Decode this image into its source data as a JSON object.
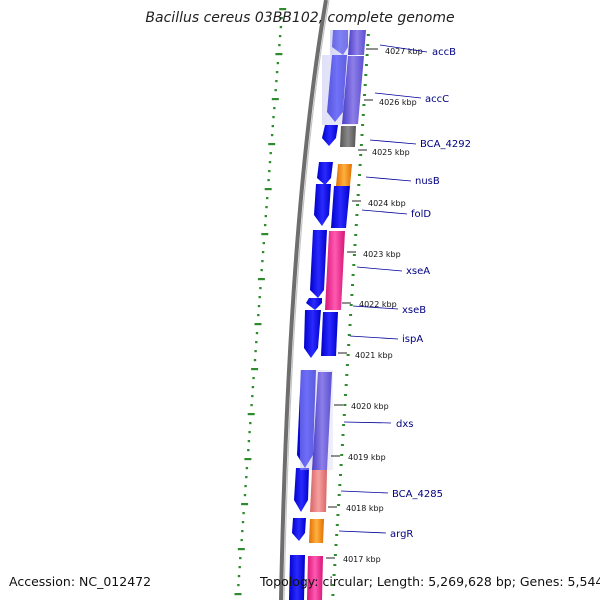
{
  "title": "Bacillus cereus 03BB102, complete genome",
  "accession": "Accession: NC_012472",
  "topology": "Topology: circular; Length: 5,269,628 bp; Genes: 5,544",
  "colors": {
    "backbone": "#7a7a7a",
    "cds_strand": "#0000ee",
    "gc_ticks": "#2e8b2e",
    "label_line": "#000099",
    "feature_palette": {
      "purple": "#7b68dd",
      "gray": "#6d6d6d",
      "orange": "#ff8c00",
      "pink": "#ee2a90",
      "salmon": "#e97d7d"
    }
  },
  "tick_labels": [
    "4027 kbp",
    "4026 kbp",
    "4025 kbp",
    "4024 kbp",
    "4023 kbp",
    "4022 kbp",
    "4021 kbp",
    "4020 kbp",
    "4019 kbp",
    "4018 kbp",
    "4017 kbp"
  ],
  "gene_labels": [
    "accB",
    "accC",
    "BCA_4292",
    "nusB",
    "folD",
    "xseA",
    "xseB",
    "ispA",
    "dxs",
    "BCA_4285",
    "argR"
  ],
  "features": [
    {
      "label": "accB",
      "color": "purple"
    },
    {
      "label": "accC",
      "color": "purple"
    },
    {
      "label": "BCA_4292",
      "color": "gray"
    },
    {
      "label": "nusB",
      "color": "orange"
    },
    {
      "label": "folD",
      "color": "blue"
    },
    {
      "label": "xseA",
      "color": "pink"
    },
    {
      "label": "xseB",
      "color": "blue"
    },
    {
      "label": "ispA",
      "color": "blue"
    },
    {
      "label": "dxs",
      "color": "purple"
    },
    {
      "label": "BCA_4285",
      "color": "salmon"
    },
    {
      "label": "argR",
      "color": "orange"
    }
  ]
}
